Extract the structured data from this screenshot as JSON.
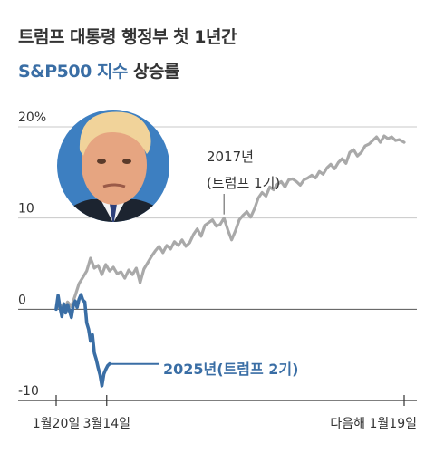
{
  "title": {
    "line1": "트럼프 대통령 행정부 첫 1년간",
    "highlight": "S&P500 지수",
    "rest": "상승률"
  },
  "colors": {
    "gray_line": "#a9a9a9",
    "blue_line": "#3a6ea5",
    "grid": "#c8c8c8",
    "portrait_bg": "#3d7fc1"
  },
  "annotations": {
    "term1_year": "2017년",
    "term1_label": "(트럼프 1기)",
    "term2_label": "2025년(트럼프 2기)"
  },
  "portrait": {
    "icon": "trump-portrait-icon"
  },
  "chart_data": {
    "type": "line",
    "ylim": [
      -10,
      20
    ],
    "y_ticks": [
      {
        "value": 20,
        "label": "20%"
      },
      {
        "value": 10,
        "label": "10"
      },
      {
        "value": 0,
        "label": "0"
      },
      {
        "value": -10,
        "label": "-10"
      }
    ],
    "x_range": [
      0,
      365
    ],
    "x_ticks": [
      {
        "day": 0,
        "label": "1월20일"
      },
      {
        "day": 53,
        "label": "3월14일"
      },
      {
        "day": 365,
        "label": "다음해 1월19일"
      }
    ],
    "series": [
      {
        "name": "2017년(트럼프 1기)",
        "color": "#a9a9a9",
        "points": [
          [
            0,
            0
          ],
          [
            4,
            0.5
          ],
          [
            8,
            -0.2
          ],
          [
            12,
            0.8
          ],
          [
            16,
            0.3
          ],
          [
            20,
            1.5
          ],
          [
            24,
            2.8
          ],
          [
            28,
            3.5
          ],
          [
            32,
            4.2
          ],
          [
            36,
            5.6
          ],
          [
            40,
            4.5
          ],
          [
            44,
            4.8
          ],
          [
            48,
            3.8
          ],
          [
            52,
            4.9
          ],
          [
            56,
            4.2
          ],
          [
            60,
            4.6
          ],
          [
            64,
            3.9
          ],
          [
            68,
            4.1
          ],
          [
            72,
            3.4
          ],
          [
            76,
            4.3
          ],
          [
            80,
            3.8
          ],
          [
            84,
            4.5
          ],
          [
            88,
            2.9
          ],
          [
            92,
            4.4
          ],
          [
            96,
            5.1
          ],
          [
            100,
            5.8
          ],
          [
            104,
            6.4
          ],
          [
            108,
            6.9
          ],
          [
            112,
            6.2
          ],
          [
            116,
            7.0
          ],
          [
            120,
            6.6
          ],
          [
            124,
            7.4
          ],
          [
            128,
            7.0
          ],
          [
            132,
            7.6
          ],
          [
            136,
            6.9
          ],
          [
            140,
            7.3
          ],
          [
            144,
            8.2
          ],
          [
            148,
            8.8
          ],
          [
            152,
            8.0
          ],
          [
            156,
            9.2
          ],
          [
            160,
            9.5
          ],
          [
            164,
            9.8
          ],
          [
            168,
            9.1
          ],
          [
            172,
            9.3
          ],
          [
            176,
            10.0
          ],
          [
            180,
            8.7
          ],
          [
            184,
            7.6
          ],
          [
            188,
            8.6
          ],
          [
            192,
            9.8
          ],
          [
            196,
            10.3
          ],
          [
            200,
            10.7
          ],
          [
            204,
            10.1
          ],
          [
            208,
            11.0
          ],
          [
            212,
            12.2
          ],
          [
            216,
            12.8
          ],
          [
            220,
            12.4
          ],
          [
            224,
            13.4
          ],
          [
            228,
            13.1
          ],
          [
            232,
            13.7
          ],
          [
            236,
            14.0
          ],
          [
            240,
            13.4
          ],
          [
            244,
            14.2
          ],
          [
            248,
            14.3
          ],
          [
            252,
            14.0
          ],
          [
            256,
            13.6
          ],
          [
            260,
            14.2
          ],
          [
            264,
            14.4
          ],
          [
            268,
            14.7
          ],
          [
            272,
            14.4
          ],
          [
            276,
            15.1
          ],
          [
            280,
            14.8
          ],
          [
            284,
            15.5
          ],
          [
            288,
            15.9
          ],
          [
            292,
            15.4
          ],
          [
            296,
            16.1
          ],
          [
            300,
            16.5
          ],
          [
            304,
            16.0
          ],
          [
            308,
            17.2
          ],
          [
            312,
            17.5
          ],
          [
            316,
            16.8
          ],
          [
            320,
            17.2
          ],
          [
            324,
            17.9
          ],
          [
            328,
            18.1
          ],
          [
            332,
            18.5
          ],
          [
            336,
            18.9
          ],
          [
            340,
            18.3
          ],
          [
            344,
            19.0
          ],
          [
            348,
            18.7
          ],
          [
            352,
            18.9
          ],
          [
            356,
            18.5
          ],
          [
            360,
            18.6
          ],
          [
            365,
            18.3
          ]
        ]
      },
      {
        "name": "2025년(트럼프 2기)",
        "color": "#3a6ea5",
        "points": [
          [
            0,
            0
          ],
          [
            2,
            1.5
          ],
          [
            4,
            0.2
          ],
          [
            6,
            -0.8
          ],
          [
            8,
            0.6
          ],
          [
            10,
            -0.4
          ],
          [
            12,
            0.5
          ],
          [
            14,
            -0.2
          ],
          [
            16,
            -0.9
          ],
          [
            18,
            0.4
          ],
          [
            20,
            0.9
          ],
          [
            22,
            0.2
          ],
          [
            24,
            1.1
          ],
          [
            26,
            1.6
          ],
          [
            28,
            1.0
          ],
          [
            30,
            0.8
          ],
          [
            32,
            -1.5
          ],
          [
            34,
            -2.2
          ],
          [
            36,
            -3.5
          ],
          [
            38,
            -2.8
          ],
          [
            40,
            -4.8
          ],
          [
            42,
            -5.5
          ],
          [
            44,
            -6.4
          ],
          [
            46,
            -7.2
          ],
          [
            48,
            -8.4
          ],
          [
            50,
            -7.1
          ],
          [
            52,
            -6.6
          ],
          [
            54,
            -6.2
          ],
          [
            56,
            -6.0
          ]
        ]
      }
    ]
  }
}
